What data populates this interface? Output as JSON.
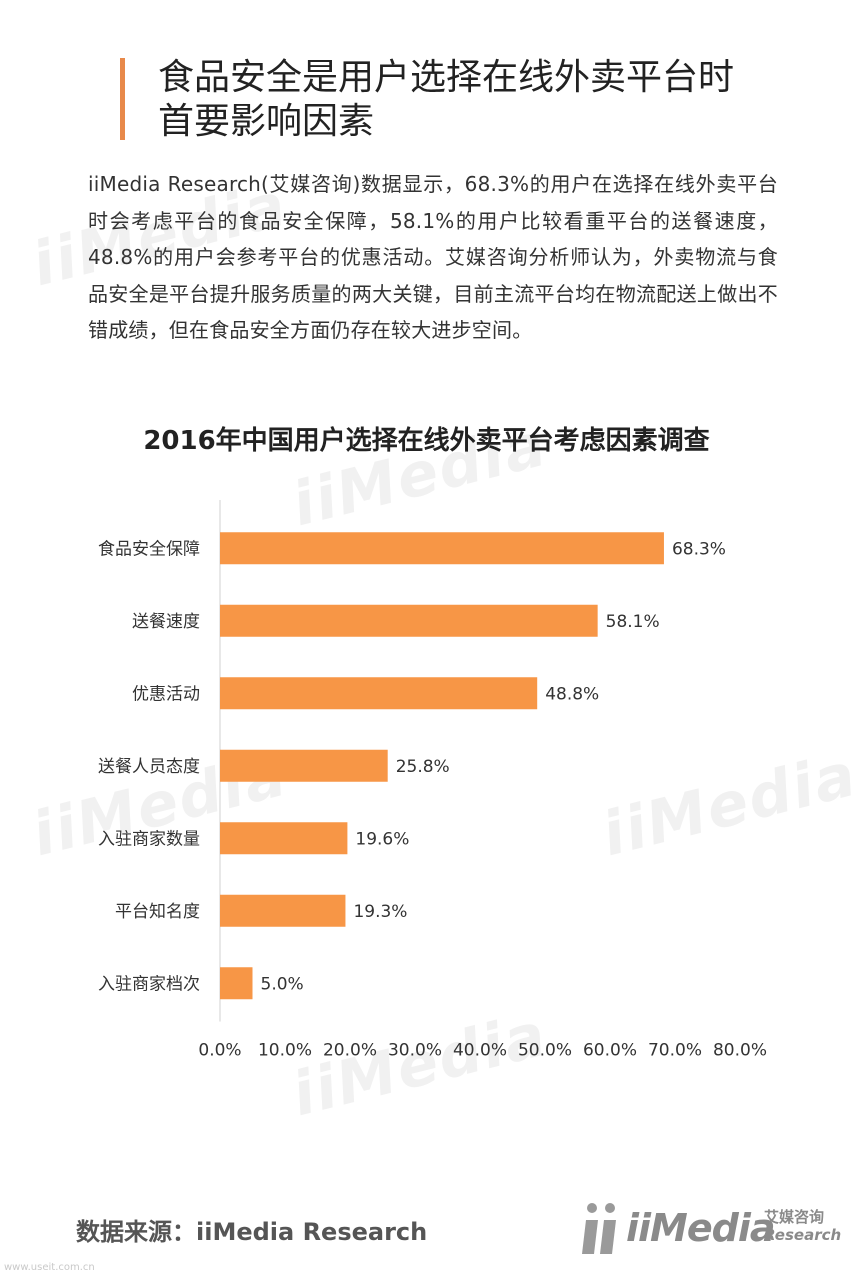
{
  "heading": {
    "line1": "食品安全是用户选择在线外卖平台时",
    "line2": "首要影响因素"
  },
  "intro": "iiMedia Research(艾媒咨询)数据显示，68.3%的用户在选择在线外卖平台时会考虑平台的食品安全保障，58.1%的用户比较看重平台的送餐速度，48.8%的用户会参考平台的优惠活动。艾媒咨询分析师认为，外卖物流与食品安全是平台提升服务质量的两大关键，目前主流平台均在物流配送上做出不错成绩，但在食品安全方面仍存在较大进步空间。",
  "chart_data": {
    "type": "bar",
    "orientation": "horizontal",
    "title": "2016年中国用户选择在线外卖平台考虑因素调查",
    "categories": [
      "食品安全保障",
      "送餐速度",
      "优惠活动",
      "送餐人员态度",
      "入驻商家数量",
      "平台知名度",
      "入驻商家档次"
    ],
    "values": [
      68.3,
      58.1,
      48.8,
      25.8,
      19.6,
      19.3,
      5.0
    ],
    "value_labels": [
      "68.3%",
      "58.1%",
      "48.8%",
      "25.8%",
      "19.6%",
      "19.3%",
      "5.0%"
    ],
    "xlim": [
      0,
      80
    ],
    "x_ticks": [
      "0.0%",
      "10.0%",
      "20.0%",
      "30.0%",
      "40.0%",
      "50.0%",
      "60.0%",
      "70.0%",
      "80.0%"
    ],
    "grid": false,
    "bar_color": "#f79646",
    "axis_color": "#d0d0d0"
  },
  "source": "数据来源：iiMedia Research",
  "brand": {
    "name": "iiMedia",
    "cn": "艾媒咨询",
    "en": "Research"
  },
  "watermark": "iiMedia",
  "site": "www.useit.com.cn"
}
